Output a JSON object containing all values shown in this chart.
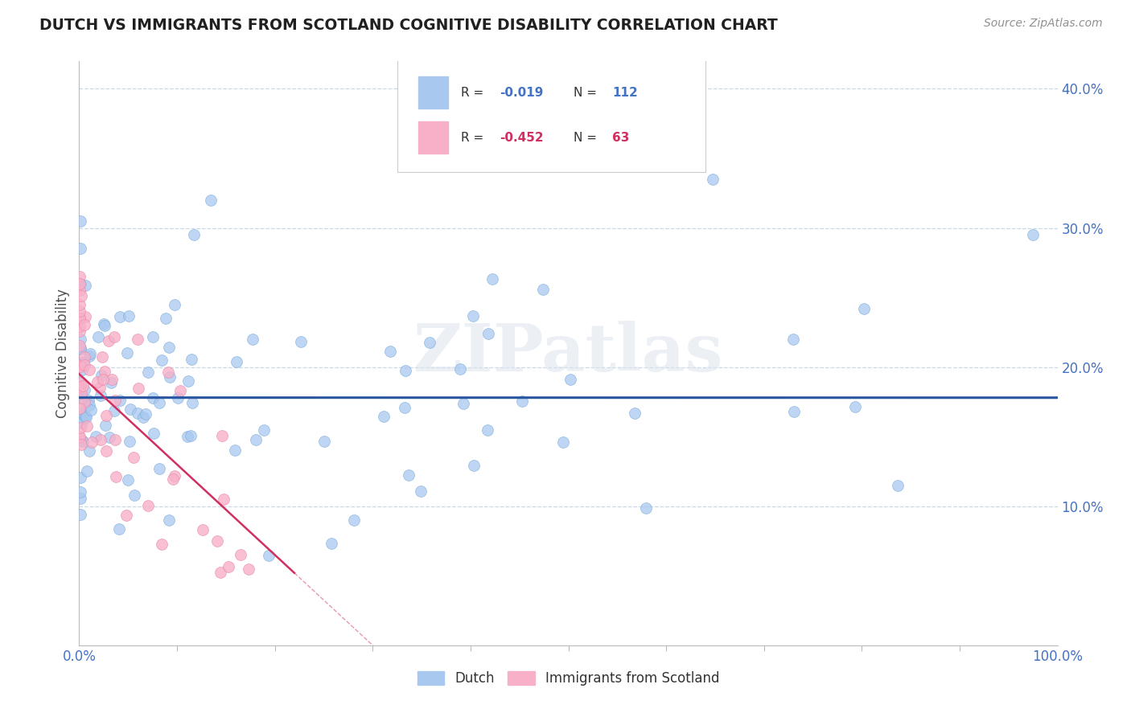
{
  "title": "DUTCH VS IMMIGRANTS FROM SCOTLAND COGNITIVE DISABILITY CORRELATION CHART",
  "source": "Source: ZipAtlas.com",
  "ylabel": "Cognitive Disability",
  "background_color": "#ffffff",
  "watermark_text": "ZIPatlas",
  "dutch_R": -0.019,
  "dutch_N": 112,
  "scotland_R": -0.452,
  "scotland_N": 63,
  "xmin": 0.0,
  "xmax": 1.0,
  "ymin": 0.0,
  "ymax": 0.42,
  "yticks": [
    0.0,
    0.1,
    0.2,
    0.3,
    0.4
  ],
  "ytick_labels": [
    "",
    "10.0%",
    "20.0%",
    "30.0%",
    "40.0%"
  ],
  "xtick_labels": [
    "0.0%",
    "100.0%"
  ],
  "dot_color_dutch": "#a8c8f0",
  "dot_edge_dutch": "#7aaad8",
  "dot_color_scotland": "#f8b0c8",
  "dot_edge_scotland": "#e888a8",
  "line_color_dutch": "#2855a0",
  "line_color_scotland": "#d03060",
  "grid_color": "#c8d8e8",
  "title_color": "#202020",
  "source_color": "#909090",
  "axis_color": "#4472c4",
  "ylabel_color": "#505050",
  "legend_box_color": "#e8e8f0",
  "legend_r_color_dutch": "#4472c4",
  "legend_r_color_scotland": "#d03060"
}
